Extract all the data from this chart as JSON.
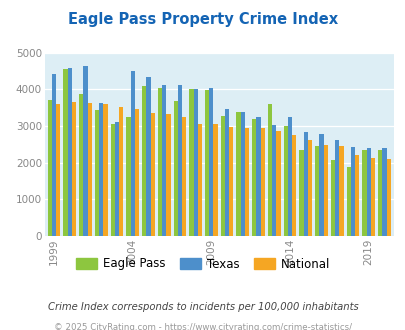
{
  "title": "Eagle Pass Property Crime Index",
  "title_color": "#1464b4",
  "years": [
    1999,
    2000,
    2001,
    2002,
    2003,
    2004,
    2005,
    2006,
    2007,
    2008,
    2009,
    2010,
    2011,
    2012,
    2013,
    2014,
    2015,
    2016,
    2017,
    2018,
    2019,
    2020
  ],
  "eagle_pass": [
    3700,
    4560,
    3880,
    3450,
    3060,
    3260,
    4080,
    4040,
    3680,
    4020,
    3990,
    3270,
    3390,
    3190,
    3610,
    3000,
    2350,
    2450,
    2070,
    1890,
    2340,
    2340
  ],
  "texas": [
    4420,
    4590,
    4640,
    3620,
    3100,
    4510,
    4340,
    4120,
    4110,
    4010,
    4050,
    3470,
    3390,
    3250,
    3040,
    3260,
    2830,
    2790,
    2610,
    2430,
    2400,
    2390
  ],
  "national": [
    3610,
    3670,
    3640,
    3590,
    3510,
    3470,
    3360,
    3340,
    3240,
    3060,
    3050,
    2970,
    2940,
    2960,
    2860,
    2750,
    2610,
    2490,
    2450,
    2210,
    2120,
    2090
  ],
  "eagle_pass_color": "#8dc63f",
  "texas_color": "#4d8fcb",
  "national_color": "#f5a623",
  "bg_color": "#ddeef5",
  "ylim": [
    0,
    5000
  ],
  "yticks": [
    0,
    1000,
    2000,
    3000,
    4000,
    5000
  ],
  "xtick_labels": [
    "1999",
    "2004",
    "2009",
    "2014",
    "2019"
  ],
  "xtick_year_positions": [
    1999,
    2004,
    2009,
    2014,
    2019
  ],
  "legend_labels": [
    "Eagle Pass",
    "Texas",
    "National"
  ],
  "footnote1": "Crime Index corresponds to incidents per 100,000 inhabitants",
  "footnote2": "© 2025 CityRating.com - https://www.cityrating.com/crime-statistics/",
  "footnote1_color": "#444444",
  "footnote2_color": "#999999",
  "fig_width": 4.06,
  "fig_height": 3.3,
  "fig_dpi": 100
}
